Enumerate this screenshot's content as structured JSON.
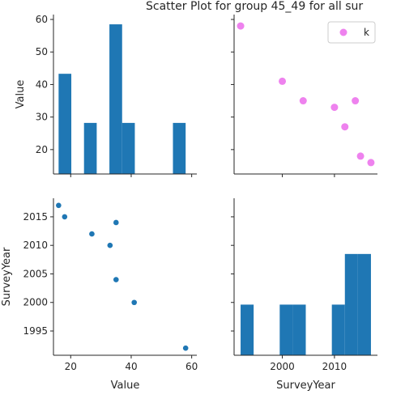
{
  "chart_data": {
    "type": "scatter",
    "title": "Scatter Plot for group 45_49 for all sur",
    "legend": {
      "placement": "top-right",
      "label": "k",
      "color": "#ee82ee"
    },
    "bar_color": "#1f77b4",
    "point_color": "#1f77b4",
    "highlight_color": "#ee82ee",
    "points": [
      {
        "value": 58,
        "year": 1992
      },
      {
        "value": 41,
        "year": 2000
      },
      {
        "value": 35,
        "year": 2004
      },
      {
        "value": 33,
        "year": 2010
      },
      {
        "value": 27,
        "year": 2012
      },
      {
        "value": 35,
        "year": 2014
      },
      {
        "value": 18,
        "year": 2015
      },
      {
        "value": 16,
        "year": 2017
      }
    ],
    "panels": [
      {
        "id": "value-hist",
        "type": "histogram",
        "variable": "Value",
        "xlim": [
          14.3,
          61.7
        ],
        "ylim": [
          12.5,
          61.5
        ],
        "bins": [
          {
            "start": 16,
            "end": 20.2,
            "height": 43.3
          },
          {
            "start": 24.4,
            "end": 28.6,
            "height": 28.2
          },
          {
            "start": 32.8,
            "end": 37.0,
            "height": 58.5
          },
          {
            "start": 37.0,
            "end": 41.2,
            "height": 28.2
          },
          {
            "start": 53.8,
            "end": 58,
            "height": 28.2
          }
        ],
        "ylabel": "Value",
        "yticks": [
          20,
          30,
          40,
          50,
          60
        ]
      },
      {
        "id": "value-vs-year",
        "type": "scatter",
        "x": "SurveyYear",
        "y": "Value",
        "xlim": [
          1990.75,
          2018.25
        ],
        "ylim": [
          12.5,
          61.5
        ]
      },
      {
        "id": "year-vs-value",
        "type": "scatter",
        "x": "Value",
        "y": "SurveyYear",
        "xlim": [
          14.3,
          61.7
        ],
        "ylim": [
          1990.75,
          2018.25
        ],
        "ylabel": "SurveyYear",
        "xlabel": "Value",
        "xticks": [
          20,
          40,
          60
        ],
        "yticks": [
          1995,
          2000,
          2005,
          2010,
          2015
        ]
      },
      {
        "id": "year-hist",
        "type": "histogram",
        "variable": "SurveyYear",
        "xlim": [
          1990.75,
          2018.25
        ],
        "ymax": 3.1,
        "bins": [
          {
            "start": 1992,
            "end": 1994.5,
            "count": 1
          },
          {
            "start": 1999.5,
            "end": 2002,
            "count": 1
          },
          {
            "start": 2002,
            "end": 2004.5,
            "count": 1
          },
          {
            "start": 2009.5,
            "end": 2012,
            "count": 1
          },
          {
            "start": 2012,
            "end": 2014.5,
            "count": 2
          },
          {
            "start": 2014.5,
            "end": 2017,
            "count": 2
          }
        ],
        "xlabel": "SurveyYear",
        "xticks": [
          2000,
          2010
        ]
      }
    ]
  }
}
